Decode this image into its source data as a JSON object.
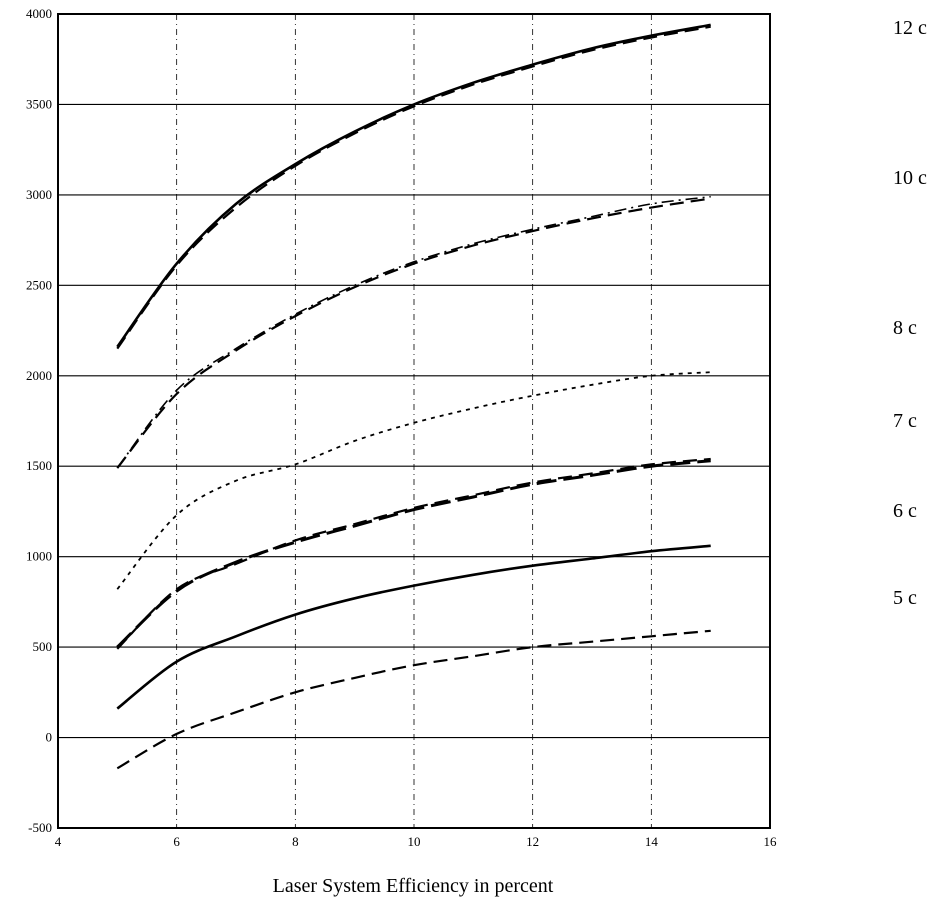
{
  "chart_data": {
    "type": "line",
    "title": "",
    "xlabel": "Laser System Efficiency in percent",
    "ylabel": "",
    "xlim": [
      4,
      16
    ],
    "ylim": [
      -500,
      4000
    ],
    "xticks": [
      4,
      6,
      8,
      10,
      12,
      14,
      16
    ],
    "yticks": [
      -500,
      0,
      500,
      1000,
      1500,
      2000,
      2500,
      3000,
      3500,
      4000
    ],
    "xtick_labels": [
      "4",
      "6",
      "8",
      "10",
      "12",
      "14",
      "16"
    ],
    "ytick_labels": [
      "-500",
      "0",
      "500",
      "1000",
      "1500",
      "2000",
      "2500",
      "3000",
      "3500",
      "4000"
    ],
    "grid": true,
    "x": [
      5,
      6,
      7,
      8,
      9,
      10,
      11,
      12,
      13,
      14,
      15
    ],
    "series_labels": [
      "12 c",
      "10 c",
      "8 c",
      "7 c",
      "6 c",
      "5 c"
    ],
    "series": [
      {
        "values": [
          2160,
          2620,
          2950,
          3170,
          3350,
          3500,
          3620,
          3720,
          3810,
          3880,
          3940
        ],
        "style": "solid",
        "color": "#000000"
      },
      {
        "values": [
          2150,
          2610,
          2930,
          3160,
          3340,
          3490,
          3610,
          3710,
          3800,
          3870,
          3930
        ],
        "style": "dashed",
        "color": "#000000"
      },
      {
        "values": [
          1490,
          1900,
          2140,
          2330,
          2490,
          2620,
          2720,
          2800,
          2870,
          2930,
          2980
        ],
        "style": "dashed",
        "color": "#000000"
      },
      {
        "values": [
          1490,
          1920,
          2150,
          2340,
          2500,
          2630,
          2730,
          2810,
          2880,
          2950,
          2990
        ],
        "style": "dashdot",
        "color": "#000000"
      },
      {
        "values": [
          820,
          1230,
          1420,
          1510,
          1640,
          1740,
          1820,
          1890,
          1950,
          2000,
          2020
        ],
        "style": "dotted",
        "color": "#000000"
      },
      {
        "values": [
          490,
          820,
          960,
          1090,
          1180,
          1270,
          1340,
          1410,
          1460,
          1510,
          1540
        ],
        "style": "dashed",
        "color": "#000000"
      },
      {
        "values": [
          500,
          810,
          970,
          1080,
          1170,
          1260,
          1330,
          1400,
          1450,
          1500,
          1530
        ],
        "style": "longdash",
        "color": "#000000"
      },
      {
        "values": [
          160,
          420,
          560,
          680,
          770,
          840,
          900,
          950,
          990,
          1030,
          1060
        ],
        "style": "solid",
        "color": "#000000"
      },
      {
        "values": [
          -170,
          20,
          140,
          250,
          330,
          400,
          450,
          500,
          530,
          560,
          590
        ],
        "style": "dashed",
        "color": "#000000"
      }
    ]
  }
}
